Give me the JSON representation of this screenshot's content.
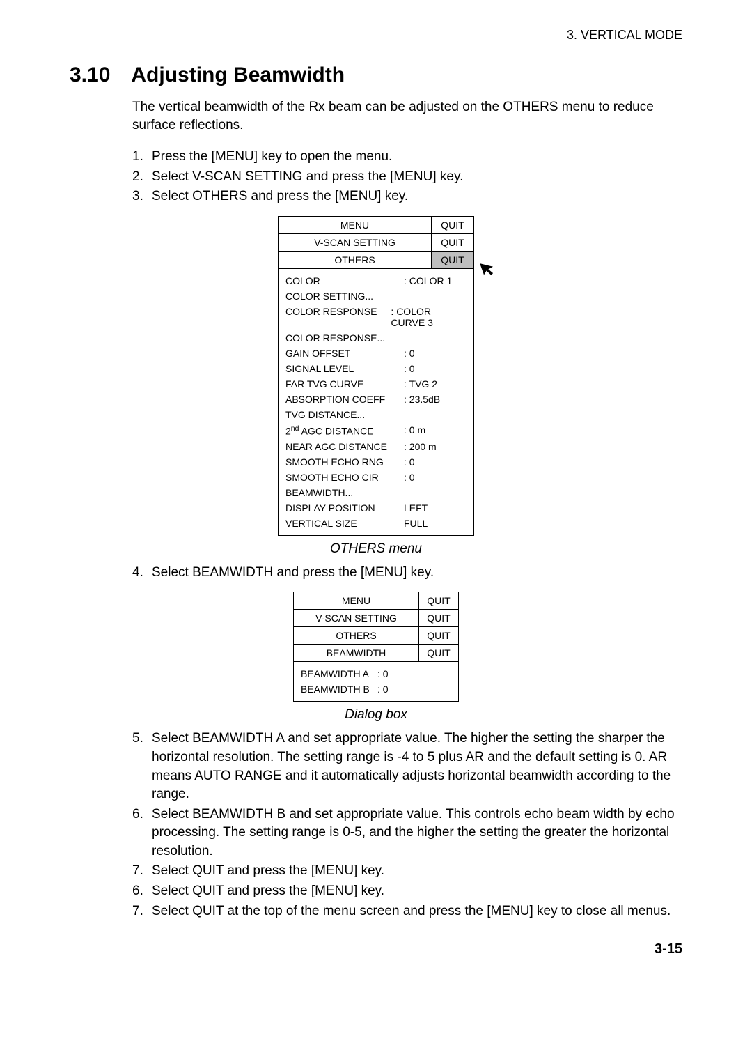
{
  "header": {
    "chapter": "3.  VERTICAL  MODE"
  },
  "section": {
    "number": "3.10",
    "title": "Adjusting Beamwidth"
  },
  "intro": "The vertical beamwidth of the Rx beam can be adjusted on the OTHERS menu to reduce surface reflections.",
  "steps_a": [
    {
      "n": "1.",
      "t": "Press the [MENU] key to open the menu."
    },
    {
      "n": "2.",
      "t": "Select V-SCAN SETTING and press the [MENU] key."
    },
    {
      "n": "3.",
      "t": "Select OTHERS and press the [MENU] key."
    }
  ],
  "others_menu": {
    "headers": [
      {
        "label": "MENU",
        "quit": "QUIT",
        "label_w": 220,
        "quit_w": 60,
        "quit_hl": false
      },
      {
        "label": "V-SCAN SETTING",
        "quit": "QUIT",
        "label_w": 220,
        "quit_w": 60,
        "quit_hl": false
      },
      {
        "label": "OTHERS",
        "quit": "QUIT",
        "label_w": 220,
        "quit_w": 60,
        "quit_hl": true
      }
    ],
    "items": [
      {
        "k": "COLOR",
        "v": ": COLOR 1"
      },
      {
        "k": "COLOR SETTING...",
        "v": ""
      },
      {
        "k": "COLOR RESPONSE",
        "v": ": COLOR CURVE 3"
      },
      {
        "k": "COLOR RESPONSE...",
        "v": ""
      },
      {
        "k": "GAIN OFFSET",
        "v": ": 0"
      },
      {
        "k": "SIGNAL LEVEL",
        "v": ": 0"
      },
      {
        "k": "FAR TVG CURVE",
        "v": ": TVG 2"
      },
      {
        "k": "ABSORPTION COEFF",
        "v": ": 23.5dB"
      },
      {
        "k": "TVG DISTANCE...",
        "v": ""
      },
      {
        "k": "2nd AGC DISTANCE",
        "v": ": 0 m",
        "sup": true
      },
      {
        "k": "NEAR AGC DISTANCE",
        "v": ": 200 m"
      },
      {
        "k": "SMOOTH ECHO RNG",
        "v": ": 0"
      },
      {
        "k": "SMOOTH ECHO CIR",
        "v": ": 0"
      },
      {
        "k": "BEAMWIDTH...",
        "v": ""
      },
      {
        "k": "DISPLAY POSITION",
        "v": "  LEFT"
      },
      {
        "k": "VERTICAL SIZE",
        "v": "  FULL"
      }
    ],
    "caption": "OTHERS menu"
  },
  "steps_b": [
    {
      "n": "4.",
      "t": "Select BEAMWIDTH and press the [MENU] key."
    }
  ],
  "beam_menu": {
    "headers": [
      {
        "label": "MENU",
        "quit": "QUIT",
        "label_w": 180,
        "quit_w": 56
      },
      {
        "label": "V-SCAN SETTING",
        "quit": "QUIT",
        "label_w": 180,
        "quit_w": 56
      },
      {
        "label": "OTHERS",
        "quit": "QUIT",
        "label_w": 180,
        "quit_w": 56
      },
      {
        "label": "BEAMWIDTH",
        "quit": "QUIT",
        "label_w": 180,
        "quit_w": 56
      }
    ],
    "items": [
      {
        "k": "BEAMWIDTH A",
        "v": ": 0"
      },
      {
        "k": "BEAMWIDTH B",
        "v": ": 0"
      }
    ],
    "caption": "Dialog box"
  },
  "steps_c": [
    {
      "n": "5.",
      "t": "Select BEAMWIDTH A and set appropriate value. The higher the setting the sharper the horizontal resolution. The setting range is -4 to 5 plus AR and the default setting is 0. AR means AUTO RANGE and it automatically adjusts horizontal beamwidth according to the range."
    },
    {
      "n": "6.",
      "t": "Select BEAMWIDTH B and set appropriate value. This controls echo beam width by echo processing. The setting range is 0-5, and the higher the setting the greater the horizontal resolution."
    },
    {
      "n": "7.",
      "t": "Select QUIT and press the [MENU] key."
    },
    {
      "n": "6.",
      "t": "Select QUIT and press the [MENU] key."
    },
    {
      "n": "7.",
      "t": "Select QUIT at the top of the menu screen and press the [MENU] key to close all menus."
    }
  ],
  "page_number": "3-15",
  "colors": {
    "highlight_bg": "#bfbfbf",
    "text": "#000000",
    "bg": "#ffffff"
  }
}
